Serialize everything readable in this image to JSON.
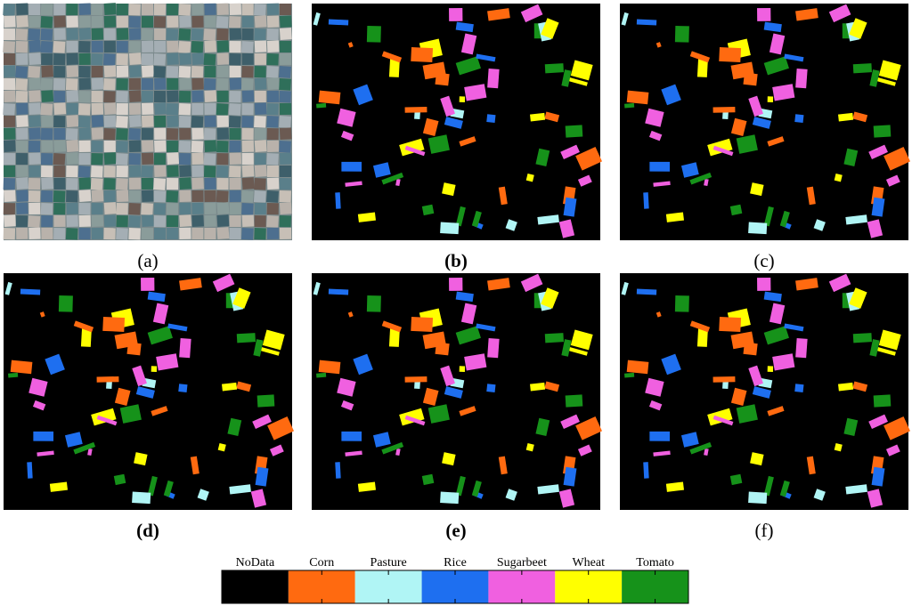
{
  "panels": [
    {
      "label": "(a)",
      "bold": false
    },
    {
      "label": "(b)",
      "bold": true
    },
    {
      "label": "(c)",
      "bold": false
    },
    {
      "label": "(d)",
      "bold": true
    },
    {
      "label": "(e)",
      "bold": true
    },
    {
      "label": "(f)",
      "bold": false
    }
  ],
  "legend": [
    {
      "label": "NoData",
      "color": "#000000"
    },
    {
      "label": "Corn",
      "color": "#ff6a10"
    },
    {
      "label": "Pasture",
      "color": "#b0f5f5"
    },
    {
      "label": "Rice",
      "color": "#1e6ff0"
    },
    {
      "label": "Sugarbeet",
      "color": "#f060e0"
    },
    {
      "label": "Wheat",
      "color": "#ffff00"
    },
    {
      "label": "Tomato",
      "color": "#16921a"
    }
  ]
}
